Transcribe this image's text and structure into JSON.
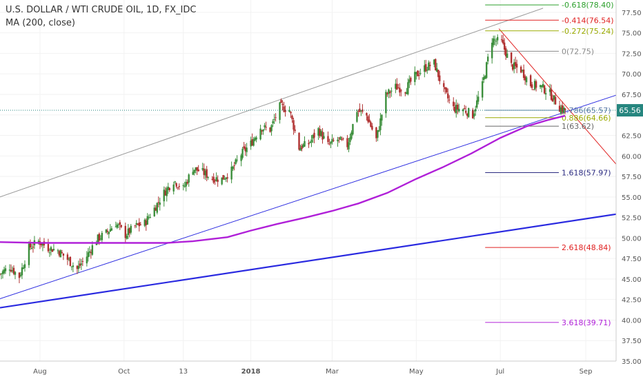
{
  "header": {
    "title": "U.S. DOLLAR / WTI CRUDE OIL, 1D, FX_IDC",
    "indicator": "MA (200, close)"
  },
  "colors": {
    "bull": "#3b8e3b",
    "bear": "#b03030",
    "ma": "#b020d8",
    "channel": "#999999",
    "trend": "#2a2ae0",
    "down": "#e02020",
    "price_tag": "#26867f",
    "axis_text": "#555555",
    "grid": "#f2f2f2"
  },
  "chart_data": {
    "type": "candlestick",
    "symbol": "U.S. DOLLAR / WTI CRUDE OIL, 1D, FX_IDC",
    "indicator": "MA (200, close)",
    "last_price": "65.56",
    "y_axis": {
      "range": [
        35,
        79
      ],
      "ticks": [
        "35.00",
        "37.50",
        "40.00",
        "42.50",
        "45.00",
        "47.50",
        "50.00",
        "52.50",
        "55.00",
        "57.50",
        "60.00",
        "62.50",
        "65.00",
        "67.50",
        "70.00",
        "72.50",
        "75.00",
        "77.50"
      ]
    },
    "x_axis": {
      "range": [
        "2017-07-03",
        "2018-09-23"
      ],
      "labels": [
        {
          "date": "2017-08-01",
          "text": "Aug",
          "bold": false
        },
        {
          "date": "2017-10-01",
          "text": "Oct",
          "bold": false
        },
        {
          "date": "2017-11-13",
          "text": "13",
          "bold": false
        },
        {
          "date": "2018-01-01",
          "text": "2018",
          "bold": true
        },
        {
          "date": "2018-03-01",
          "text": "Mar",
          "bold": false
        },
        {
          "date": "2018-05-01",
          "text": "May",
          "bold": false
        },
        {
          "date": "2018-07-01",
          "text": "Jul",
          "bold": false
        },
        {
          "date": "2018-09-01",
          "text": "Sep",
          "bold": false
        }
      ]
    },
    "close_path": [
      [
        "2017-07-03",
        45.6
      ],
      [
        "2017-07-10",
        46.5
      ],
      [
        "2017-07-17",
        45.3
      ],
      [
        "2017-07-24",
        48.8
      ],
      [
        "2017-07-31",
        49.6
      ],
      [
        "2017-08-07",
        48.8
      ],
      [
        "2017-08-14",
        48.5
      ],
      [
        "2017-08-21",
        47.4
      ],
      [
        "2017-08-28",
        46.2
      ],
      [
        "2017-09-04",
        47.8
      ],
      [
        "2017-09-11",
        49.8
      ],
      [
        "2017-09-18",
        50.6
      ],
      [
        "2017-09-25",
        51.8
      ],
      [
        "2017-10-02",
        50.4
      ],
      [
        "2017-10-09",
        51.4
      ],
      [
        "2017-10-16",
        51.8
      ],
      [
        "2017-10-23",
        53.6
      ],
      [
        "2017-10-30",
        55.5
      ],
      [
        "2017-11-06",
        57.0
      ],
      [
        "2017-11-13",
        56.0
      ],
      [
        "2017-11-20",
        58.5
      ],
      [
        "2017-11-27",
        58.0
      ],
      [
        "2017-12-04",
        57.3
      ],
      [
        "2017-12-11",
        57.2
      ],
      [
        "2017-12-18",
        58.2
      ],
      [
        "2017-12-25",
        60.2
      ],
      [
        "2018-01-01",
        61.5
      ],
      [
        "2018-01-08",
        63.5
      ],
      [
        "2018-01-15",
        63.2
      ],
      [
        "2018-01-22",
        66.0
      ],
      [
        "2018-01-29",
        65.6
      ],
      [
        "2018-02-05",
        61.0
      ],
      [
        "2018-02-12",
        61.5
      ],
      [
        "2018-02-19",
        63.2
      ],
      [
        "2018-02-26",
        61.3
      ],
      [
        "2018-03-05",
        62.0
      ],
      [
        "2018-03-12",
        61.3
      ],
      [
        "2018-03-19",
        65.6
      ],
      [
        "2018-03-26",
        64.9
      ],
      [
        "2018-04-02",
        62.0
      ],
      [
        "2018-04-09",
        67.4
      ],
      [
        "2018-04-16",
        68.4
      ],
      [
        "2018-04-23",
        68.1
      ],
      [
        "2018-04-30",
        69.7
      ],
      [
        "2018-05-07",
        70.7
      ],
      [
        "2018-05-14",
        71.3
      ],
      [
        "2018-05-21",
        67.9
      ],
      [
        "2018-05-28",
        65.8
      ],
      [
        "2018-06-04",
        65.7
      ],
      [
        "2018-06-11",
        65.0
      ],
      [
        "2018-06-18",
        68.6
      ],
      [
        "2018-06-25",
        74.2
      ],
      [
        "2018-07-02",
        73.8
      ],
      [
        "2018-07-09",
        71.0
      ],
      [
        "2018-07-16",
        70.5
      ],
      [
        "2018-07-23",
        68.7
      ],
      [
        "2018-07-30",
        68.5
      ],
      [
        "2018-08-06",
        67.6
      ],
      [
        "2018-08-13",
        65.9
      ],
      [
        "2018-08-17",
        65.56
      ]
    ],
    "ma200": [
      [
        "2017-07-03",
        49.5
      ],
      [
        "2017-08-01",
        49.4
      ],
      [
        "2017-09-01",
        49.4
      ],
      [
        "2017-10-01",
        49.4
      ],
      [
        "2017-11-01",
        49.4
      ],
      [
        "2017-11-20",
        49.6
      ],
      [
        "2017-12-15",
        50.1
      ],
      [
        "2018-01-01",
        50.9
      ],
      [
        "2018-01-20",
        51.7
      ],
      [
        "2018-02-10",
        52.5
      ],
      [
        "2018-03-01",
        53.3
      ],
      [
        "2018-03-20",
        54.2
      ],
      [
        "2018-04-10",
        55.5
      ],
      [
        "2018-05-01",
        57.2
      ],
      [
        "2018-05-20",
        58.6
      ],
      [
        "2018-06-10",
        60.3
      ],
      [
        "2018-07-01",
        62.2
      ],
      [
        "2018-07-20",
        63.6
      ],
      [
        "2018-08-05",
        64.4
      ],
      [
        "2018-08-17",
        64.9
      ]
    ],
    "lines": [
      {
        "name": "upper-channel",
        "color": "#999999",
        "width": 1,
        "p1": [
          "2017-07-03",
          55.0
        ],
        "p2": [
          "2018-08-01",
          78.0
        ]
      },
      {
        "name": "rising-trendline",
        "color": "#2a2ae0",
        "width": 1,
        "p1": [
          "2017-07-03",
          42.6
        ],
        "p2": [
          "2018-09-23",
          67.4
        ]
      },
      {
        "name": "long-trendline",
        "color": "#2a2ae0",
        "width": 2.2,
        "p1": [
          "2017-07-03",
          41.5
        ],
        "p2": [
          "2018-09-23",
          52.9
        ]
      },
      {
        "name": "down-trendline",
        "color": "#e02020",
        "width": 1,
        "p1": [
          "2018-06-30",
          75.5
        ],
        "p2": [
          "2018-09-23",
          59.0
        ]
      }
    ],
    "fib_start": "2018-06-20",
    "fib_levels": [
      {
        "ratio": "-0.618",
        "value": 78.4,
        "label": "-0.618(78.40)",
        "color": "#2ca02c"
      },
      {
        "ratio": "-0.414",
        "value": 76.54,
        "label": "-0.414(76.54)",
        "color": "#e02020"
      },
      {
        "ratio": "-0.272",
        "value": 75.24,
        "label": "-0.272(75.24)",
        "color": "#9aaa00"
      },
      {
        "ratio": "0",
        "value": 72.75,
        "label": "0(72.75)",
        "color": "#8a8a8a"
      },
      {
        "ratio": "0.786",
        "value": 65.57,
        "label": "0.786(65.57)",
        "color": "#5a78a8"
      },
      {
        "ratio": "0.886",
        "value": 64.66,
        "label": "0.886(64.66)",
        "color": "#9aaa00"
      },
      {
        "ratio": "1",
        "value": 63.62,
        "label": "1(63.62)",
        "color": "#666666"
      },
      {
        "ratio": "1.618",
        "value": 57.97,
        "label": "1.618(57.97)",
        "color": "#2a2a80"
      },
      {
        "ratio": "2.618",
        "value": 48.84,
        "label": "2.618(48.84)",
        "color": "#e02020"
      },
      {
        "ratio": "3.618",
        "value": 39.71,
        "label": "3.618(39.71)",
        "color": "#b020d8"
      }
    ]
  }
}
